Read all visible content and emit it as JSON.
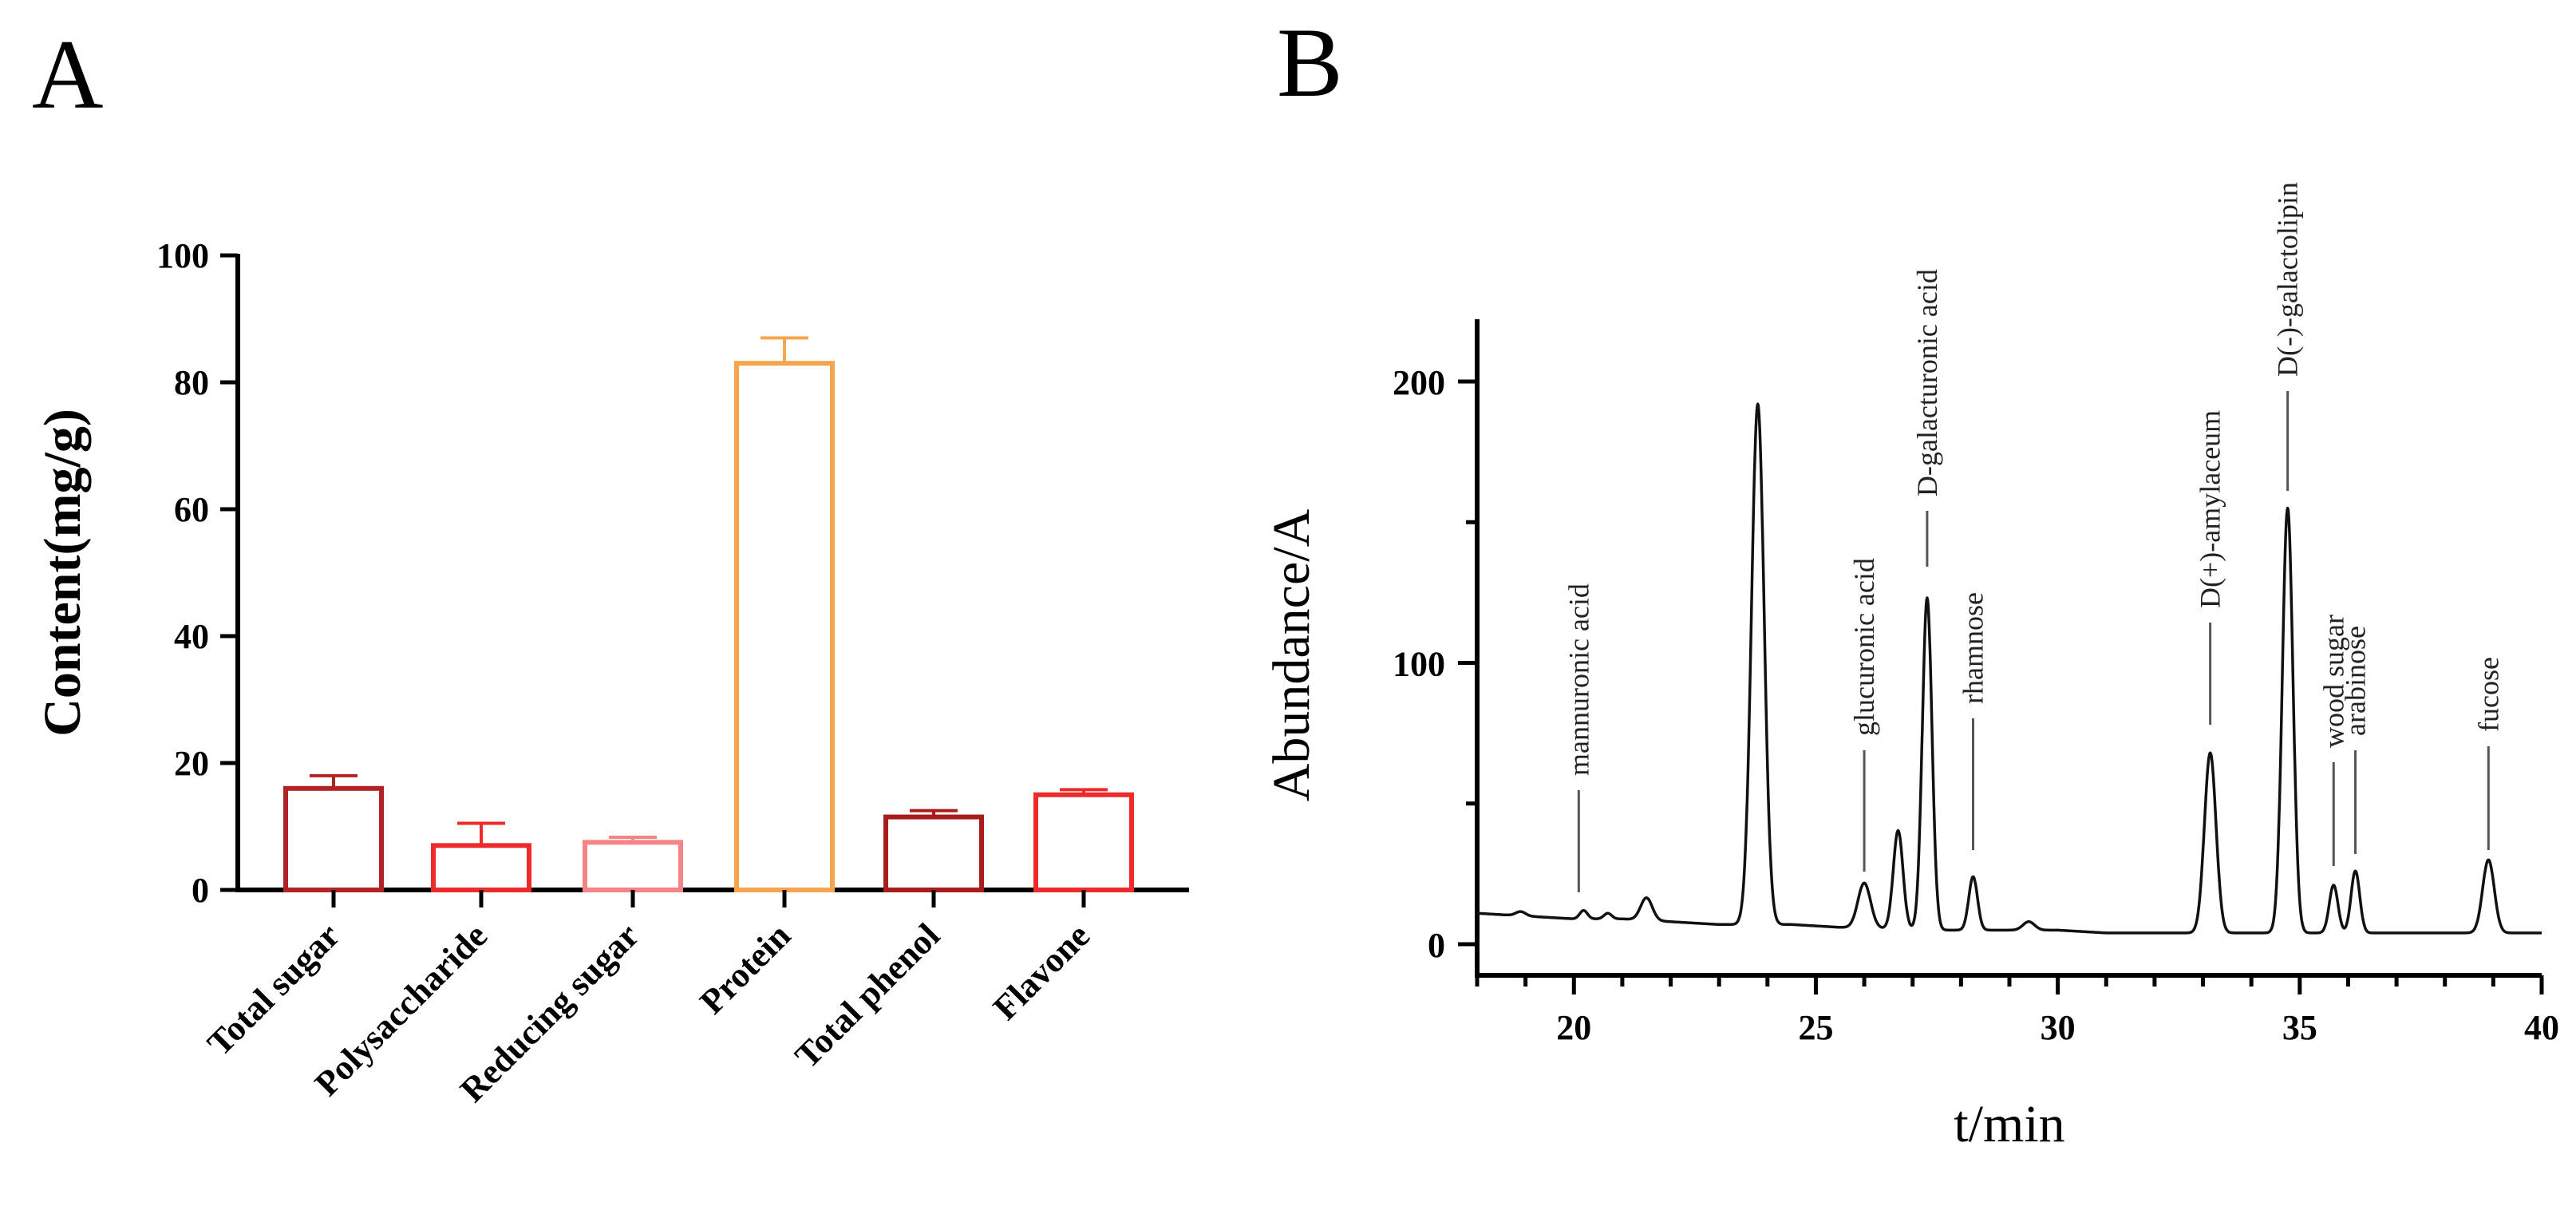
{
  "chart_data": [
    {
      "panel": "A",
      "type": "bar",
      "title": "",
      "xlabel": "",
      "ylabel": "Content(mg/g)",
      "ylim": [
        0,
        100
      ],
      "yticks": [
        0,
        20,
        40,
        60,
        80,
        100
      ],
      "categories": [
        "Total sugar",
        "Polysaccharide",
        "Reducing sugar",
        "Protein",
        "Total phenol",
        "Flavone"
      ],
      "values": [
        16,
        7,
        7.5,
        83,
        11.5,
        15
      ],
      "errors": [
        2,
        3.5,
        0.8,
        4,
        1,
        0.8
      ],
      "colors": [
        "#b22424",
        "#ee2a2a",
        "#f58585",
        "#f5a550",
        "#a81c1c",
        "#ee2a2a"
      ],
      "grid": false
    },
    {
      "panel": "B",
      "type": "line",
      "title": "",
      "xlabel": "t/min",
      "ylabel": "Abundance/A",
      "xlim": [
        18,
        40
      ],
      "ylim": [
        0,
        220
      ],
      "xticks": [
        20,
        25,
        30,
        35,
        40
      ],
      "yticks": [
        0,
        100,
        200
      ],
      "baseline": [
        [
          18,
          11
        ],
        [
          19,
          10
        ],
        [
          20,
          9
        ],
        [
          21,
          9
        ],
        [
          22,
          8
        ],
        [
          23,
          7
        ],
        [
          24.5,
          7
        ],
        [
          25.5,
          6
        ],
        [
          27.5,
          5
        ],
        [
          29,
          5
        ],
        [
          30,
          5
        ],
        [
          31,
          4
        ],
        [
          32,
          4
        ],
        [
          33,
          4
        ],
        [
          34,
          4
        ],
        [
          35,
          4
        ],
        [
          36,
          4
        ],
        [
          37,
          4
        ],
        [
          38,
          4
        ],
        [
          39,
          4
        ],
        [
          40,
          4
        ]
      ],
      "peaks": [
        {
          "t": 18.9,
          "h": 1.5,
          "w": 0.1
        },
        {
          "t": 20.2,
          "h": 3,
          "w": 0.08
        },
        {
          "t": 20.7,
          "h": 2,
          "w": 0.08
        },
        {
          "t": 21.5,
          "h": 8,
          "w": 0.12
        },
        {
          "t": 23.8,
          "h": 185,
          "w": 0.13
        },
        {
          "t": 26.0,
          "h": 16,
          "w": 0.13
        },
        {
          "t": 26.7,
          "h": 35,
          "w": 0.1
        },
        {
          "t": 27.3,
          "h": 118,
          "w": 0.1
        },
        {
          "t": 28.25,
          "h": 19,
          "w": 0.09
        },
        {
          "t": 29.4,
          "h": 3,
          "w": 0.12
        },
        {
          "t": 33.15,
          "h": 64,
          "w": 0.12
        },
        {
          "t": 34.75,
          "h": 151,
          "w": 0.11
        },
        {
          "t": 35.7,
          "h": 17,
          "w": 0.09
        },
        {
          "t": 36.15,
          "h": 22,
          "w": 0.09
        },
        {
          "t": 38.9,
          "h": 26,
          "w": 0.12
        }
      ],
      "annotations": [
        {
          "text": "mannuronic acid",
          "t": 20.1
        },
        {
          "text": "glucuronic acid",
          "t": 26.0
        },
        {
          "text": "D-galacturonic acid",
          "t": 27.3
        },
        {
          "text": "rhamnose",
          "t": 28.25
        },
        {
          "text": "D(+)-amylaceum",
          "t": 33.15
        },
        {
          "text": "D(-)-galactolipin",
          "t": 34.75
        },
        {
          "text": "wood sugar",
          "t": 35.7
        },
        {
          "text": "arabinose",
          "t": 36.15
        },
        {
          "text": "fucose",
          "t": 38.9
        }
      ],
      "grid": false
    }
  ],
  "panels": {
    "a": "A",
    "b": "B"
  }
}
